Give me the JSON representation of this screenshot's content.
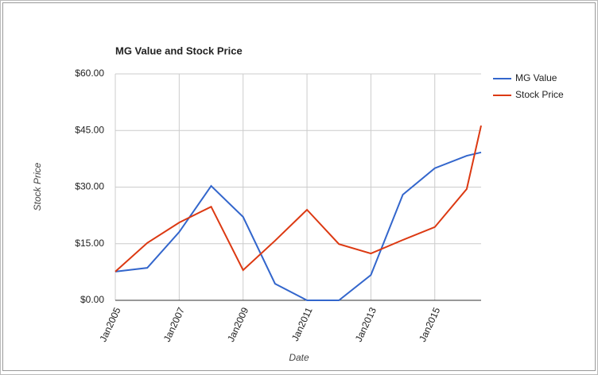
{
  "chart_data": {
    "type": "line",
    "title": "MG Value and Stock Price",
    "x_label": "Date",
    "y_label": "Stock Price",
    "x": [
      2005,
      2006,
      2007,
      2008,
      2009,
      2010,
      2011,
      2012,
      2013,
      2014,
      2015,
      2016,
      2016.45
    ],
    "series": [
      {
        "name": "MG Value",
        "color": "#3366cc",
        "values": [
          7.6,
          8.6,
          18.1,
          30.3,
          22.1,
          4.4,
          0,
          0,
          6.7,
          28,
          35,
          38.3,
          39.2
        ]
      },
      {
        "name": "Stock Price",
        "color": "#dc3912",
        "values": [
          7.6,
          15.2,
          20.6,
          24.8,
          8,
          15.8,
          24,
          14.9,
          12.4,
          16,
          19.4,
          29.5,
          46.3
        ]
      }
    ],
    "xlim": [
      2005,
      2016.45
    ],
    "xticks": [
      {
        "value": 2005,
        "label": "Jan2005"
      },
      {
        "value": 2007,
        "label": "Jan2007"
      },
      {
        "value": 2009,
        "label": "Jan2009"
      },
      {
        "value": 2011,
        "label": "Jan2011"
      },
      {
        "value": 2013,
        "label": "Jan2013"
      },
      {
        "value": 2015,
        "label": "Jan2015"
      }
    ],
    "ylim": [
      0,
      60
    ],
    "yticks": [
      {
        "value": 0,
        "label": "$0.00"
      },
      {
        "value": 15,
        "label": "$15.00"
      },
      {
        "value": 30,
        "label": "$30.00"
      },
      {
        "value": 45,
        "label": "$45.00"
      },
      {
        "value": 60,
        "label": "$60.00"
      }
    ],
    "grid": true,
    "legend": "top-right"
  }
}
